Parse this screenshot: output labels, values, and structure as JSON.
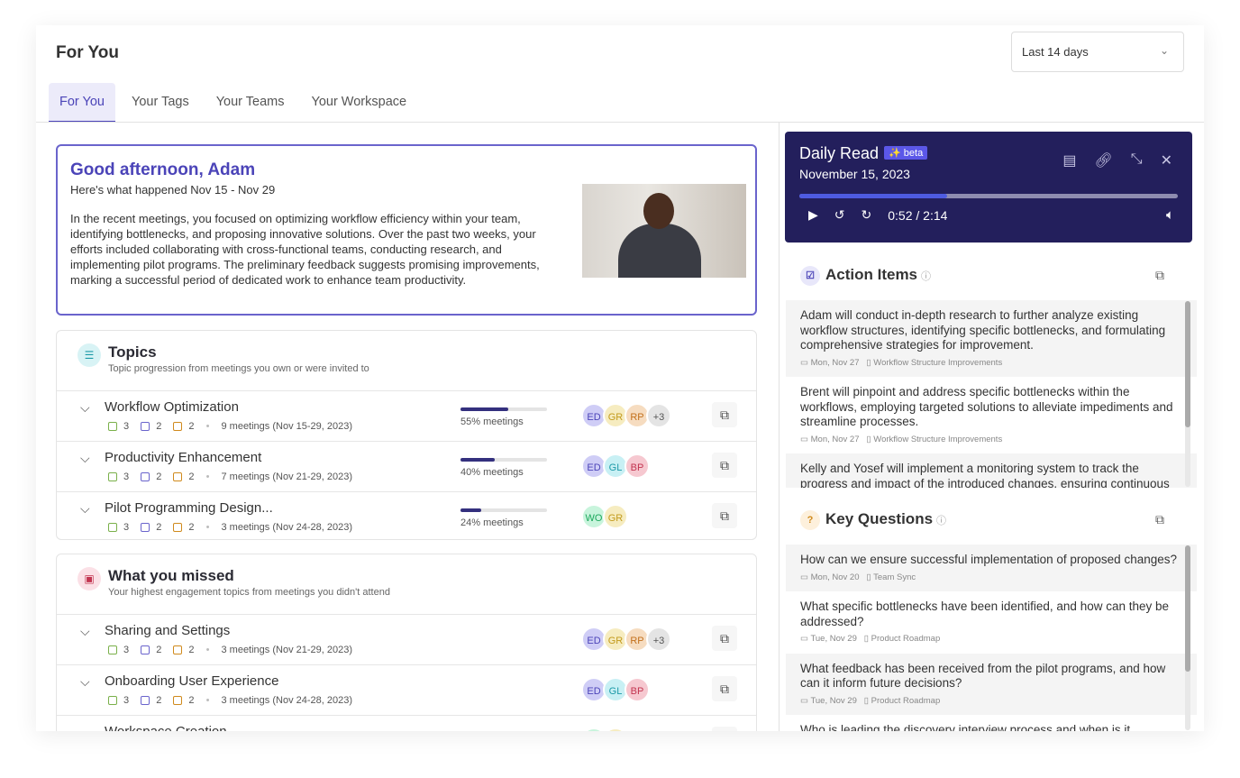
{
  "header": {
    "title": "For You",
    "range": "Last 14 days"
  },
  "tabs": [
    "For You",
    "Your Tags",
    "Your Teams",
    "Your Workspace"
  ],
  "greeting": {
    "title": "Good afternoon, Adam",
    "subtitle": "Here's what happened Nov 15 - Nov 29",
    "body": "In the recent meetings, you focused on optimizing workflow efficiency within your team, identifying bottlenecks, and proposing innovative solutions. Over the past two weeks, your efforts included collaborating with cross-functional teams, conducting research, and implementing pilot programs. The preliminary feedback suggests promising improvements, marking a successful period of dedicated work to enhance team productivity."
  },
  "topics": {
    "title": "Topics",
    "desc": "Topic progression from meetings you own or were invited to",
    "rows": [
      {
        "name": "Workflow Optimization",
        "a": "3",
        "b": "2",
        "c": "2",
        "meetings": "9 meetings (Nov 15-29, 2023)",
        "pct": 55,
        "pct_label": "55% meetings",
        "avatars": [
          "ED",
          "GR",
          "RP",
          "+3"
        ]
      },
      {
        "name": "Productivity Enhancement",
        "a": "3",
        "b": "2",
        "c": "2",
        "meetings": "7 meetings (Nov 21-29, 2023)",
        "pct": 40,
        "pct_label": "40% meetings",
        "avatars": [
          "ED",
          "GL",
          "BP"
        ]
      },
      {
        "name": "Pilot Programming Design...",
        "a": "3",
        "b": "2",
        "c": "2",
        "meetings": "3 meetings (Nov 24-28, 2023)",
        "pct": 24,
        "pct_label": "24% meetings",
        "avatars": [
          "WO",
          "GR"
        ]
      }
    ]
  },
  "missed": {
    "title": "What you missed",
    "desc": "Your highest engagement topics from meetings you didn't attend",
    "rows": [
      {
        "name": "Sharing and Settings",
        "a": "3",
        "b": "2",
        "c": "2",
        "meetings": "3 meetings (Nov 21-29, 2023)",
        "avatars": [
          "ED",
          "GR",
          "RP",
          "+3"
        ]
      },
      {
        "name": "Onboarding User Experience",
        "a": "3",
        "b": "2",
        "c": "2",
        "meetings": "3 meetings (Nov 24-28, 2023)",
        "avatars": [
          "ED",
          "GL",
          "BP"
        ]
      },
      {
        "name": "Workspace Creation",
        "a": "",
        "b": "",
        "c": "",
        "meetings": "",
        "avatars": [
          "WO",
          "GR"
        ]
      }
    ]
  },
  "daily": {
    "title": "Daily Read",
    "beta": "✨ beta",
    "date": "November 15, 2023",
    "time": "0:52 / 2:14",
    "progress": 0.39
  },
  "action_items": {
    "title": "Action Items",
    "items": [
      {
        "text": "Adam will conduct in-depth research to further analyze existing workflow structures, identifying specific bottlenecks, and formulating comprehensive strategies for improvement.",
        "date": "Mon, Nov 27",
        "meeting": "Workflow Structure Improvements"
      },
      {
        "text": "Brent will pinpoint and address specific bottlenecks within the workflows, employing targeted solutions to alleviate impediments and streamline processes.",
        "date": "Mon, Nov 27",
        "meeting": "Workflow Structure Improvements"
      },
      {
        "text": "Kelly and Yosef will implement a monitoring system to track the progress and impact of the introduced changes, ensuring continuous evaluation and adjustment.",
        "date": "",
        "meeting": ""
      }
    ]
  },
  "key_questions": {
    "title": "Key Questions",
    "items": [
      {
        "text": "How can we ensure successful implementation of proposed changes?",
        "date": "Mon, Nov 20",
        "meeting": "Team Sync"
      },
      {
        "text": "What specific bottlenecks have been identified, and how can they be addressed?",
        "date": "Tue, Nov 29",
        "meeting": "Product Roadmap"
      },
      {
        "text": "What feedback has been received from the pilot programs, and how can it inform future decisions?",
        "date": "Tue, Nov 29",
        "meeting": "Product Roadmap"
      },
      {
        "text": "Who is leading the discovery interview process and when is it",
        "date": "",
        "meeting": ""
      }
    ]
  },
  "colors": {
    "accent": "#4b44b8",
    "daily_bg": "#231f5c"
  }
}
